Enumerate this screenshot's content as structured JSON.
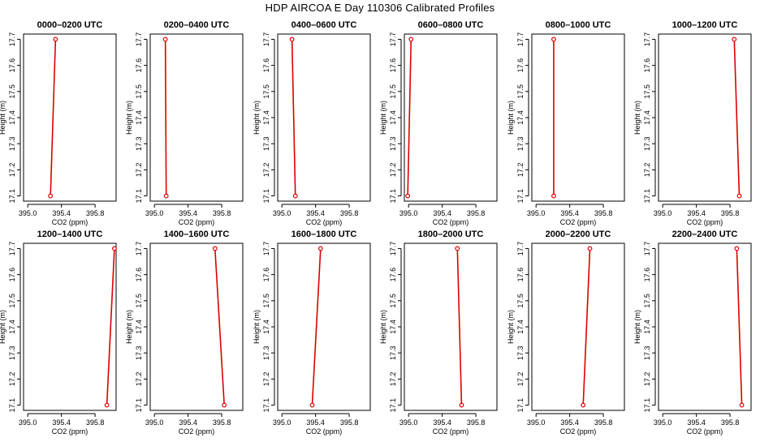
{
  "figure": {
    "title": "HDP AIRCOA E  Day 110306  Calibrated Profiles"
  },
  "colors": {
    "series": "#dd0000",
    "axes": "#000000",
    "background": "#ffffff"
  },
  "chart_data": [
    {
      "type": "line",
      "title": "0000–0200 UTC",
      "xlabel": "CO2 (ppm)",
      "ylabel": "Height (m)",
      "xlim": [
        394.95,
        396.05
      ],
      "ylim": [
        17.08,
        17.72
      ],
      "xticks": [
        395.0,
        395.4,
        395.8
      ],
      "xticklabels": [
        "395.0",
        "395.4",
        "395.8"
      ],
      "yticks": [
        17.1,
        17.2,
        17.3,
        17.4,
        17.5,
        17.6,
        17.7
      ],
      "yticklabels": [
        "17.1",
        "17.2",
        "17.3",
        "17.4",
        "17.5",
        "17.6",
        "17.7"
      ],
      "grid": false,
      "series": [
        {
          "x": [
            395.27,
            395.33
          ],
          "y": [
            17.1,
            17.7
          ]
        }
      ]
    },
    {
      "type": "line",
      "title": "0200–0400 UTC",
      "xlabel": "CO2 (ppm)",
      "ylabel": "Height (m)",
      "xlim": [
        394.95,
        396.05
      ],
      "ylim": [
        17.08,
        17.72
      ],
      "xticks": [
        395.0,
        395.4,
        395.8
      ],
      "xticklabels": [
        "395.0",
        "395.4",
        "395.8"
      ],
      "yticks": [
        17.1,
        17.2,
        17.3,
        17.4,
        17.5,
        17.6,
        17.7
      ],
      "yticklabels": [
        "17.1",
        "17.2",
        "17.3",
        "17.4",
        "17.5",
        "17.6",
        "17.7"
      ],
      "grid": false,
      "series": [
        {
          "x": [
            395.14,
            395.13
          ],
          "y": [
            17.1,
            17.7
          ]
        }
      ]
    },
    {
      "type": "line",
      "title": "0400–0600 UTC",
      "xlabel": "CO2 (ppm)",
      "ylabel": "Height (m)",
      "xlim": [
        394.95,
        396.05
      ],
      "ylim": [
        17.08,
        17.72
      ],
      "xticks": [
        395.0,
        395.4,
        395.8
      ],
      "xticklabels": [
        "395.0",
        "395.4",
        "395.8"
      ],
      "yticks": [
        17.1,
        17.2,
        17.3,
        17.4,
        17.5,
        17.6,
        17.7
      ],
      "yticklabels": [
        "17.1",
        "17.2",
        "17.3",
        "17.4",
        "17.5",
        "17.6",
        "17.7"
      ],
      "grid": false,
      "series": [
        {
          "x": [
            395.16,
            395.12
          ],
          "y": [
            17.1,
            17.7
          ]
        }
      ]
    },
    {
      "type": "line",
      "title": "0600–0800 UTC",
      "xlabel": "CO2 (ppm)",
      "ylabel": "Height (m)",
      "xlim": [
        394.95,
        396.05
      ],
      "ylim": [
        17.08,
        17.72
      ],
      "xticks": [
        395.0,
        395.4,
        395.8
      ],
      "xticklabels": [
        "395.0",
        "395.4",
        "395.8"
      ],
      "yticks": [
        17.1,
        17.2,
        17.3,
        17.4,
        17.5,
        17.6,
        17.7
      ],
      "yticklabels": [
        "17.1",
        "17.2",
        "17.3",
        "17.4",
        "17.5",
        "17.6",
        "17.7"
      ],
      "grid": false,
      "series": [
        {
          "x": [
            394.99,
            395.03
          ],
          "y": [
            17.1,
            17.7
          ]
        }
      ]
    },
    {
      "type": "line",
      "title": "0800–1000 UTC",
      "xlabel": "CO2 (ppm)",
      "ylabel": "Height (m)",
      "xlim": [
        394.95,
        396.05
      ],
      "ylim": [
        17.08,
        17.72
      ],
      "xticks": [
        395.0,
        395.4,
        395.8
      ],
      "xticklabels": [
        "395.0",
        "395.4",
        "395.8"
      ],
      "yticks": [
        17.1,
        17.2,
        17.3,
        17.4,
        17.5,
        17.6,
        17.7
      ],
      "yticklabels": [
        "17.1",
        "17.2",
        "17.3",
        "17.4",
        "17.5",
        "17.6",
        "17.7"
      ],
      "grid": false,
      "series": [
        {
          "x": [
            395.21,
            395.21
          ],
          "y": [
            17.1,
            17.7
          ]
        }
      ]
    },
    {
      "type": "line",
      "title": "1000–1200 UTC",
      "xlabel": "CO2 (ppm)",
      "ylabel": "Height (m)",
      "xlim": [
        394.95,
        396.05
      ],
      "ylim": [
        17.08,
        17.72
      ],
      "xticks": [
        395.0,
        395.4,
        395.8
      ],
      "xticklabels": [
        "395.0",
        "395.4",
        "395.8"
      ],
      "yticks": [
        17.1,
        17.2,
        17.3,
        17.4,
        17.5,
        17.6,
        17.7
      ],
      "yticklabels": [
        "17.1",
        "17.2",
        "17.3",
        "17.4",
        "17.5",
        "17.6",
        "17.7"
      ],
      "grid": false,
      "series": [
        {
          "x": [
            395.91,
            395.85
          ],
          "y": [
            17.1,
            17.7
          ]
        }
      ]
    },
    {
      "type": "line",
      "title": "1200–1400 UTC",
      "xlabel": "CO2 (ppm)",
      "ylabel": "Height (m)",
      "xlim": [
        394.95,
        396.05
      ],
      "ylim": [
        17.08,
        17.72
      ],
      "xticks": [
        395.0,
        395.4,
        395.8
      ],
      "xticklabels": [
        "395.0",
        "395.4",
        "395.8"
      ],
      "yticks": [
        17.1,
        17.2,
        17.3,
        17.4,
        17.5,
        17.6,
        17.7
      ],
      "yticklabels": [
        "17.1",
        "17.2",
        "17.3",
        "17.4",
        "17.5",
        "17.6",
        "17.7"
      ],
      "grid": false,
      "series": [
        {
          "x": [
            395.94,
            396.03
          ],
          "y": [
            17.1,
            17.7
          ]
        }
      ]
    },
    {
      "type": "line",
      "title": "1400–1600 UTC",
      "xlabel": "CO2 (ppm)",
      "ylabel": "Height (m)",
      "xlim": [
        394.95,
        396.05
      ],
      "ylim": [
        17.08,
        17.72
      ],
      "xticks": [
        395.0,
        395.4,
        395.8
      ],
      "xticklabels": [
        "395.0",
        "395.4",
        "395.8"
      ],
      "yticks": [
        17.1,
        17.2,
        17.3,
        17.4,
        17.5,
        17.6,
        17.7
      ],
      "yticklabels": [
        "17.1",
        "17.2",
        "17.3",
        "17.4",
        "17.5",
        "17.6",
        "17.7"
      ],
      "grid": false,
      "series": [
        {
          "x": [
            395.83,
            395.72
          ],
          "y": [
            17.1,
            17.7
          ]
        }
      ]
    },
    {
      "type": "line",
      "title": "1600–1800 UTC",
      "xlabel": "CO2 (ppm)",
      "ylabel": "Height (m)",
      "xlim": [
        394.95,
        396.05
      ],
      "ylim": [
        17.08,
        17.72
      ],
      "xticks": [
        395.0,
        395.4,
        395.8
      ],
      "xticklabels": [
        "395.0",
        "395.4",
        "395.8"
      ],
      "yticks": [
        17.1,
        17.2,
        17.3,
        17.4,
        17.5,
        17.6,
        17.7
      ],
      "yticklabels": [
        "17.1",
        "17.2",
        "17.3",
        "17.4",
        "17.5",
        "17.6",
        "17.7"
      ],
      "grid": false,
      "series": [
        {
          "x": [
            395.36,
            395.46
          ],
          "y": [
            17.1,
            17.7
          ]
        }
      ]
    },
    {
      "type": "line",
      "title": "1800–2000 UTC",
      "xlabel": "CO2 (ppm)",
      "ylabel": "Height (m)",
      "xlim": [
        394.95,
        396.05
      ],
      "ylim": [
        17.08,
        17.72
      ],
      "xticks": [
        395.0,
        395.4,
        395.8
      ],
      "xticklabels": [
        "395.0",
        "395.4",
        "395.8"
      ],
      "yticks": [
        17.1,
        17.2,
        17.3,
        17.4,
        17.5,
        17.6,
        17.7
      ],
      "yticklabels": [
        "17.1",
        "17.2",
        "17.3",
        "17.4",
        "17.5",
        "17.6",
        "17.7"
      ],
      "grid": false,
      "series": [
        {
          "x": [
            395.63,
            395.58
          ],
          "y": [
            17.1,
            17.7
          ]
        }
      ]
    },
    {
      "type": "line",
      "title": "2000–2200 UTC",
      "xlabel": "CO2 (ppm)",
      "ylabel": "Height (m)",
      "xlim": [
        394.95,
        396.05
      ],
      "ylim": [
        17.08,
        17.72
      ],
      "xticks": [
        395.0,
        395.4,
        395.8
      ],
      "xticklabels": [
        "395.0",
        "395.4",
        "395.8"
      ],
      "yticks": [
        17.1,
        17.2,
        17.3,
        17.4,
        17.5,
        17.6,
        17.7
      ],
      "yticklabels": [
        "17.1",
        "17.2",
        "17.3",
        "17.4",
        "17.5",
        "17.6",
        "17.7"
      ],
      "grid": false,
      "series": [
        {
          "x": [
            395.56,
            395.64
          ],
          "y": [
            17.1,
            17.7
          ]
        }
      ]
    },
    {
      "type": "line",
      "title": "2200–2400 UTC",
      "xlabel": "CO2 (ppm)",
      "ylabel": "Height (m)",
      "xlim": [
        394.95,
        396.05
      ],
      "ylim": [
        17.08,
        17.72
      ],
      "xticks": [
        395.0,
        395.4,
        395.8
      ],
      "xticklabels": [
        "395.0",
        "395.4",
        "395.8"
      ],
      "yticks": [
        17.1,
        17.2,
        17.3,
        17.4,
        17.5,
        17.6,
        17.7
      ],
      "yticklabels": [
        "17.1",
        "17.2",
        "17.3",
        "17.4",
        "17.5",
        "17.6",
        "17.7"
      ],
      "grid": false,
      "series": [
        {
          "x": [
            395.94,
            395.88
          ],
          "y": [
            17.1,
            17.7
          ]
        }
      ]
    }
  ]
}
